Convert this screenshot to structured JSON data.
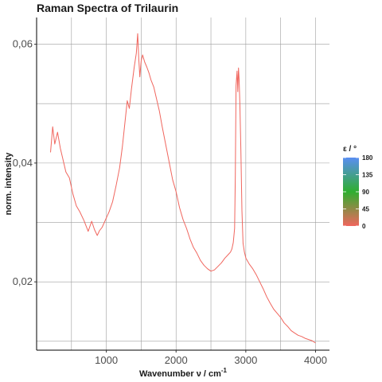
{
  "chart_data": {
    "type": "line",
    "title": "Raman Spectra of Trilaurin",
    "xlabel": "Wavenumber ν / cm",
    "xlabel_sup": "-1",
    "ylabel": "norm. intensity",
    "xlim": [
      0,
      4200
    ],
    "ylim": [
      0.0085,
      0.0645
    ],
    "x_ticks": [
      1000,
      2000,
      3000,
      4000
    ],
    "x_tick_labels": [
      "1000",
      "2000",
      "3000",
      "4000"
    ],
    "x_minor_grid": [
      500,
      1500,
      2500,
      3500
    ],
    "y_ticks": [
      0.02,
      0.04,
      0.06
    ],
    "y_tick_labels": [
      "0,02",
      "0,04",
      "0,06"
    ],
    "y_minor_grid": [
      0.01,
      0.03,
      0.05
    ],
    "grid": true,
    "legend_placement": "right",
    "legend": {
      "title": "ε / °",
      "ticks": [
        180,
        135,
        90,
        45,
        0
      ],
      "tick_labels": [
        "180",
        "135",
        "90",
        "45",
        "0"
      ],
      "colors": [
        "#5a8ef2",
        "#2fae2f",
        "#f0665e"
      ]
    },
    "series": [
      {
        "color": "#f0665e",
        "x": [
          200,
          230,
          260,
          300,
          340,
          380,
          420,
          470,
          520,
          570,
          620,
          680,
          740,
          790,
          830,
          870,
          900,
          940,
          990,
          1040,
          1090,
          1140,
          1190,
          1230,
          1270,
          1300,
          1330,
          1360,
          1400,
          1430,
          1450,
          1465,
          1480,
          1500,
          1520,
          1550,
          1580,
          1610,
          1640,
          1680,
          1720,
          1760,
          1800,
          1850,
          1900,
          1950,
          2000,
          2050,
          2100,
          2150,
          2200,
          2250,
          2300,
          2350,
          2400,
          2450,
          2500,
          2550,
          2600,
          2650,
          2700,
          2740,
          2780,
          2800,
          2820,
          2840,
          2850,
          2860,
          2875,
          2885,
          2895,
          2905,
          2915,
          2930,
          2945,
          2960,
          2980,
          3000,
          3050,
          3100,
          3150,
          3200,
          3250,
          3300,
          3350,
          3400,
          3450,
          3500,
          3550,
          3600,
          3650,
          3700,
          3750,
          3800,
          3850,
          3900,
          3950,
          4000
        ],
        "y": [
          0.0418,
          0.0461,
          0.0432,
          0.0452,
          0.0425,
          0.0405,
          0.0385,
          0.0375,
          0.0348,
          0.0328,
          0.0318,
          0.0303,
          0.0285,
          0.0302,
          0.0288,
          0.0278,
          0.0286,
          0.0292,
          0.0305,
          0.0318,
          0.0335,
          0.0362,
          0.0392,
          0.0428,
          0.0472,
          0.0505,
          0.0492,
          0.0525,
          0.0562,
          0.0585,
          0.0618,
          0.0575,
          0.0545,
          0.0572,
          0.0582,
          0.057,
          0.0562,
          0.0552,
          0.054,
          0.0528,
          0.0508,
          0.0488,
          0.0462,
          0.0432,
          0.0402,
          0.0372,
          0.0352,
          0.0325,
          0.0305,
          0.029,
          0.0272,
          0.0258,
          0.0248,
          0.0236,
          0.0228,
          0.0222,
          0.0218,
          0.022,
          0.0226,
          0.0232,
          0.024,
          0.0245,
          0.025,
          0.0255,
          0.0266,
          0.029,
          0.038,
          0.053,
          0.0555,
          0.052,
          0.056,
          0.054,
          0.05,
          0.042,
          0.032,
          0.0265,
          0.025,
          0.024,
          0.023,
          0.0222,
          0.0212,
          0.02,
          0.0188,
          0.0175,
          0.0164,
          0.0154,
          0.0147,
          0.014,
          0.0131,
          0.0125,
          0.0118,
          0.0114,
          0.011,
          0.0108,
          0.0105,
          0.0103,
          0.0101,
          0.0097
        ]
      }
    ]
  }
}
